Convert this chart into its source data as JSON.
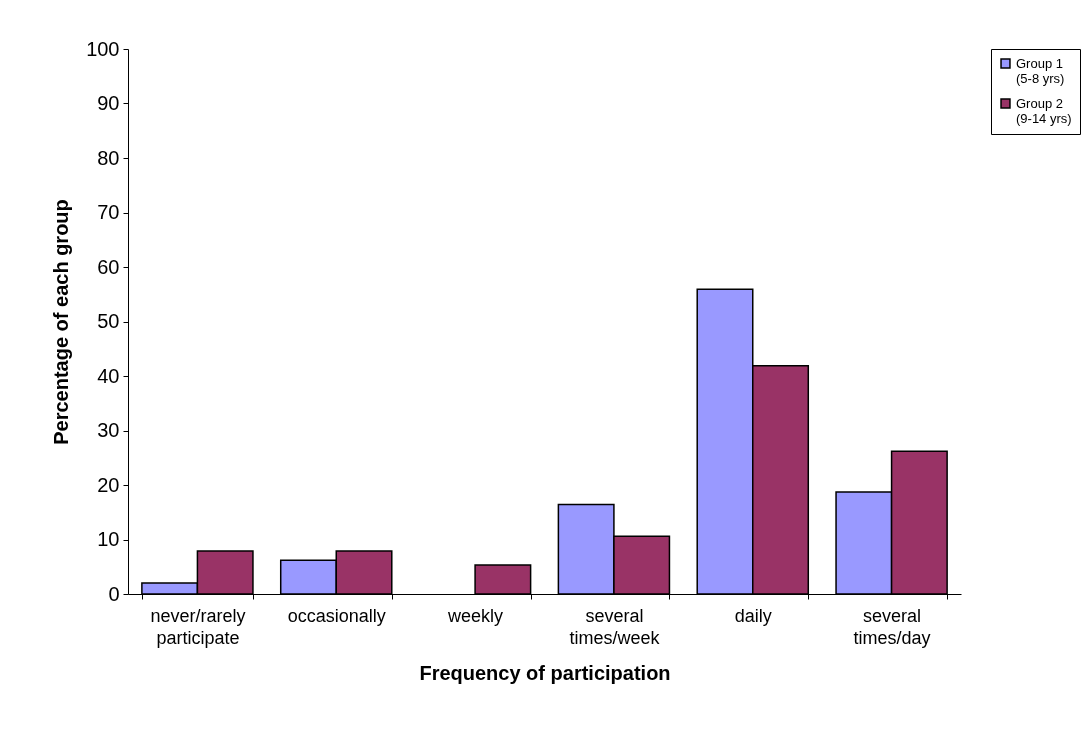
{
  "chart_data": {
    "type": "bar",
    "xlabel": "Frequency of participation",
    "ylabel": "Percentage of each group",
    "categories": [
      "never/rarely participate",
      "occasionally",
      "weekly",
      "several times/week",
      "daily",
      "several times/day"
    ],
    "series": [
      {
        "name": "Group 1 (5-8 yrs)",
        "color": "#9999ff",
        "values": [
          2.0,
          6.2,
          null,
          16.4,
          55.9,
          18.7
        ]
      },
      {
        "name": "Group 2 (9-14 yrs)",
        "color": "#993366",
        "values": [
          7.9,
          7.9,
          5.3,
          10.6,
          41.9,
          26.2
        ]
      }
    ],
    "ylim": [
      0,
      100
    ],
    "yticks": [
      0,
      10,
      20,
      30,
      40,
      50,
      60,
      70,
      80,
      90,
      100
    ],
    "grid": false,
    "legend": "right"
  }
}
